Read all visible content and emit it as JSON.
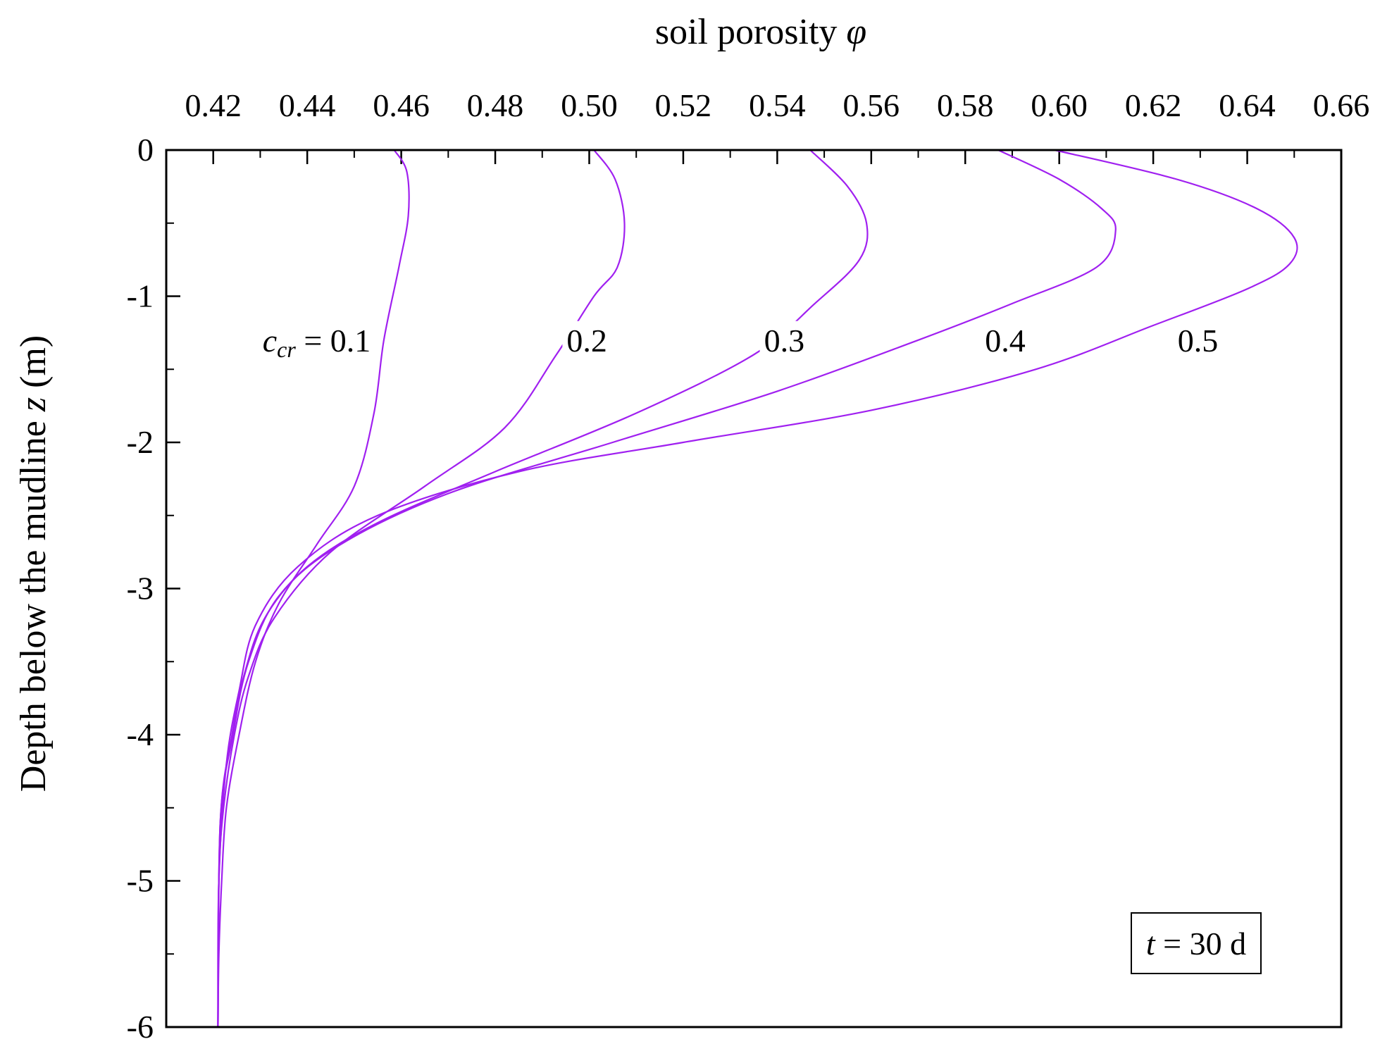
{
  "chart_data": {
    "type": "line",
    "xlabel": "soil porosity",
    "xlabel_symbol": "φ",
    "ylabel": "Depth below the mudline",
    "ylabel_symbol": "z",
    "ylabel_unit": "(m)",
    "xlim": [
      0.41,
      0.66
    ],
    "ylim": [
      -6,
      0
    ],
    "x_axis_position": "top",
    "x_ticks": [
      "0.42",
      "0.44",
      "0.46",
      "0.48",
      "0.50",
      "0.52",
      "0.54",
      "0.56",
      "0.58",
      "0.60",
      "0.62",
      "0.64",
      "0.66"
    ],
    "y_ticks": [
      "0",
      "-1",
      "-2",
      "-3",
      "-4",
      "-5",
      "-6"
    ],
    "x_tick_values": [
      0.42,
      0.44,
      0.46,
      0.48,
      0.5,
      0.52,
      0.54,
      0.56,
      0.58,
      0.6,
      0.62,
      0.64,
      0.66
    ],
    "y_tick_values": [
      0,
      -1,
      -2,
      -3,
      -4,
      -5,
      -6
    ],
    "grid": false,
    "line_color": "#a020f0",
    "param_symbol": "c",
    "param_subscript": "cr",
    "param_eq": "= ",
    "annotation": {
      "symbol": "t",
      "text": " = 30 d"
    },
    "series": [
      {
        "name": "0.1",
        "label_at": [
          0.442,
          -1.3
        ],
        "points": [
          [
            0.4585,
            0
          ],
          [
            0.4612,
            -0.15
          ],
          [
            0.4615,
            -0.45
          ],
          [
            0.4595,
            -0.8
          ],
          [
            0.4563,
            -1.3
          ],
          [
            0.4542,
            -1.8
          ],
          [
            0.45,
            -2.3
          ],
          [
            0.442,
            -2.7
          ],
          [
            0.434,
            -3.1
          ],
          [
            0.429,
            -3.5
          ],
          [
            0.4255,
            -4.0
          ],
          [
            0.4228,
            -4.5
          ],
          [
            0.4218,
            -5.0
          ],
          [
            0.4212,
            -5.5
          ],
          [
            0.421,
            -6.0
          ]
        ]
      },
      {
        "name": "0.2",
        "label_at": [
          0.4995,
          -1.3
        ],
        "points": [
          [
            0.501,
            0
          ],
          [
            0.5055,
            -0.2
          ],
          [
            0.5075,
            -0.5
          ],
          [
            0.506,
            -0.8
          ],
          [
            0.501,
            -1.0
          ],
          [
            0.493,
            -1.4
          ],
          [
            0.482,
            -1.9
          ],
          [
            0.465,
            -2.3
          ],
          [
            0.445,
            -2.75
          ],
          [
            0.433,
            -3.2
          ],
          [
            0.4275,
            -3.6
          ],
          [
            0.4245,
            -4.0
          ],
          [
            0.4222,
            -4.5
          ],
          [
            0.4212,
            -5.0
          ],
          [
            0.421,
            -6.0
          ]
        ]
      },
      {
        "name": "0.3",
        "label_at": [
          0.5415,
          -1.3
        ],
        "points": [
          [
            0.547,
            0
          ],
          [
            0.555,
            -0.25
          ],
          [
            0.559,
            -0.5
          ],
          [
            0.5575,
            -0.75
          ],
          [
            0.548,
            -1.05
          ],
          [
            0.535,
            -1.4
          ],
          [
            0.51,
            -1.8
          ],
          [
            0.48,
            -2.2
          ],
          [
            0.455,
            -2.55
          ],
          [
            0.44,
            -2.85
          ],
          [
            0.431,
            -3.2
          ],
          [
            0.4265,
            -3.6
          ],
          [
            0.424,
            -4.0
          ],
          [
            0.4215,
            -4.6
          ],
          [
            0.421,
            -6.0
          ]
        ]
      },
      {
        "name": "0.4",
        "label_at": [
          0.5885,
          -1.3
        ],
        "points": [
          [
            0.587,
            0
          ],
          [
            0.6,
            -0.2
          ],
          [
            0.609,
            -0.4
          ],
          [
            0.612,
            -0.55
          ],
          [
            0.608,
            -0.8
          ],
          [
            0.59,
            -1.05
          ],
          [
            0.57,
            -1.3
          ],
          [
            0.54,
            -1.65
          ],
          [
            0.505,
            -2.0
          ],
          [
            0.47,
            -2.35
          ],
          [
            0.447,
            -2.7
          ],
          [
            0.434,
            -3.05
          ],
          [
            0.4275,
            -3.5
          ],
          [
            0.4242,
            -4.0
          ],
          [
            0.4215,
            -4.6
          ],
          [
            0.421,
            -6.0
          ]
        ]
      },
      {
        "name": "0.5",
        "label_at": [
          0.6295,
          -1.3
        ],
        "points": [
          [
            0.599,
            0
          ],
          [
            0.625,
            -0.2
          ],
          [
            0.642,
            -0.4
          ],
          [
            0.65,
            -0.6
          ],
          [
            0.649,
            -0.78
          ],
          [
            0.64,
            -0.95
          ],
          [
            0.62,
            -1.2
          ],
          [
            0.595,
            -1.5
          ],
          [
            0.56,
            -1.78
          ],
          [
            0.52,
            -2.0
          ],
          [
            0.485,
            -2.2
          ],
          [
            0.455,
            -2.5
          ],
          [
            0.438,
            -2.85
          ],
          [
            0.429,
            -3.25
          ],
          [
            0.4255,
            -3.7
          ],
          [
            0.4228,
            -4.2
          ],
          [
            0.4212,
            -5.0
          ],
          [
            0.421,
            -6.0
          ]
        ]
      }
    ]
  }
}
